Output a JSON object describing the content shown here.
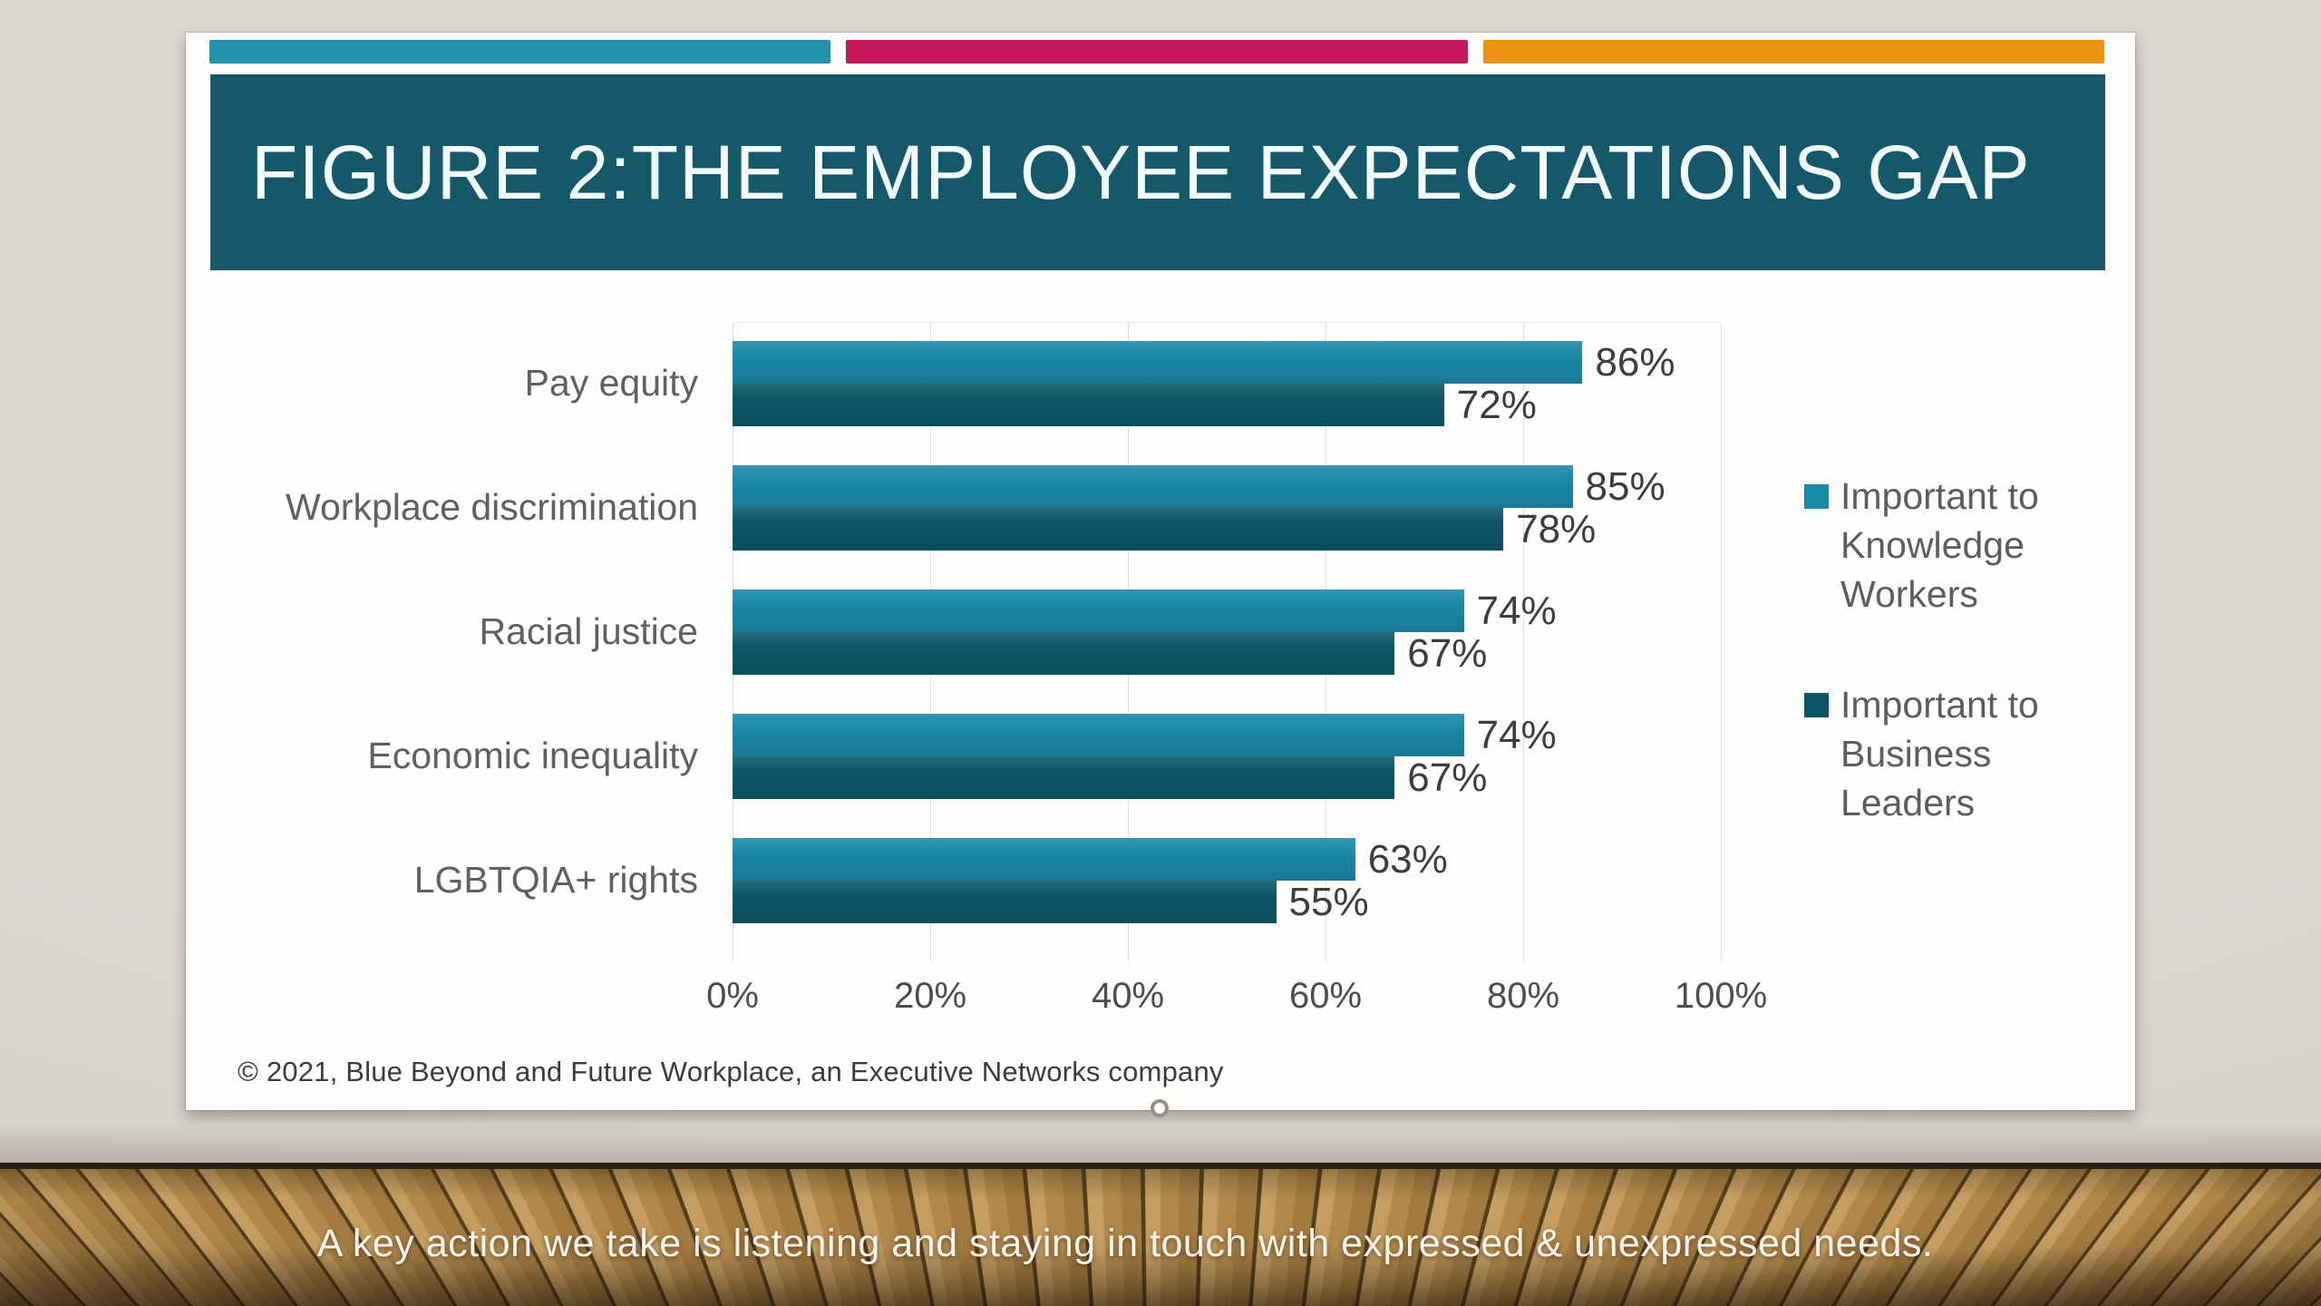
{
  "slide": {
    "title": "FIGURE 2:THE EMPLOYEE EXPECTATIONS GAP",
    "title_bg": "#14586a",
    "accent_stripes": [
      "#2191ac",
      "#c4175a",
      "#eb9315"
    ],
    "copyright": "© 2021, Blue Beyond and Future Workplace, an Executive Networks company"
  },
  "chart_data": {
    "type": "bar",
    "orientation": "horizontal",
    "title": "FIGURE 2: THE EMPLOYEE EXPECTATIONS GAP",
    "categories": [
      "Pay equity",
      "Workplace discrimination",
      "Racial justice",
      "Economic inequality",
      "LGBTQIA+ rights"
    ],
    "series": [
      {
        "name": "Important to Knowledge Workers",
        "color": "#1a88a6",
        "values": [
          86,
          85,
          74,
          74,
          63
        ]
      },
      {
        "name": "Important to Business Leaders",
        "color": "#0c5667",
        "values": [
          72,
          78,
          67,
          67,
          55
        ]
      }
    ],
    "x_ticks": [
      "0%",
      "20%",
      "40%",
      "60%",
      "80%",
      "100%"
    ],
    "xlim": [
      0,
      100
    ],
    "value_suffix": "%",
    "grid": "vertical",
    "legend_position": "right"
  },
  "caption": {
    "text": "A key action we take is listening and staying in touch with expressed & unexpressed needs."
  }
}
